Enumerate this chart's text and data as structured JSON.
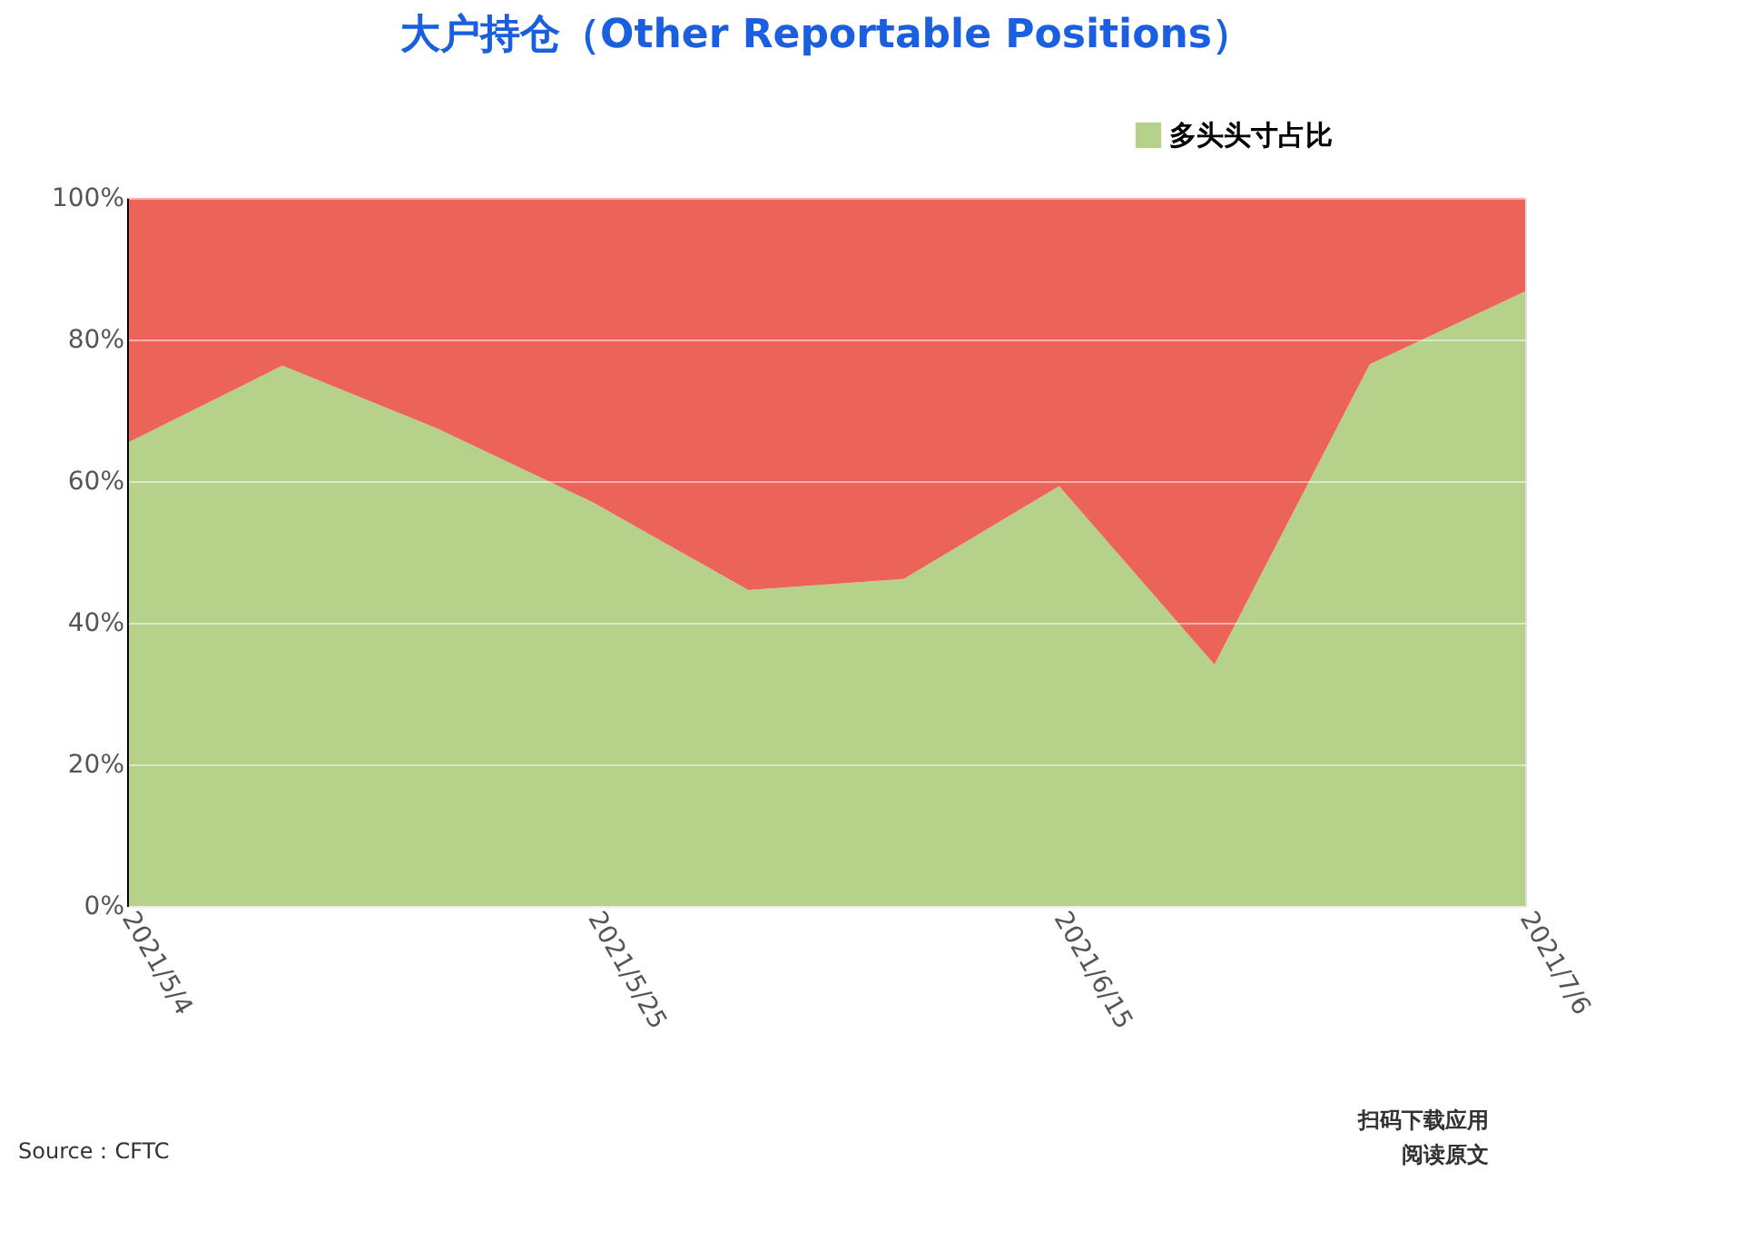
{
  "chart_data": {
    "type": "area",
    "title": "大户持仓（Other Reportable Positions）",
    "x": [
      "2021-05-04",
      "2021-05-11",
      "2021-05-18",
      "2021-05-25",
      "2021-06-01",
      "2021-06-08",
      "2021-06-15",
      "2021-06-22",
      "2021-06-29",
      "2021-07-06"
    ],
    "series": [
      {
        "name": "多头头寸占比",
        "color": "#b5d18a",
        "values": [
          65.4,
          76.3,
          67.4,
          57,
          44.6,
          46.2,
          59.3,
          34.1,
          76.5,
          86.8
        ]
      },
      {
        "color": "#ec6459",
        "values": [
          34.6,
          23.7,
          32.6,
          43,
          55.4,
          53.8,
          40.7,
          65.9,
          23.5,
          13.2
        ]
      }
    ],
    "stacked": true,
    "ylim": [
      0,
      100
    ],
    "yticks": [
      {
        "value": 0,
        "label": "0%"
      },
      {
        "value": 20,
        "label": "20%"
      },
      {
        "value": 40,
        "label": "40%"
      },
      {
        "value": 60,
        "label": "60%"
      },
      {
        "value": 80,
        "label": "80%"
      },
      {
        "value": 100,
        "label": "100%"
      }
    ],
    "xlim": [
      "2021-05-04",
      "2021-07-06"
    ],
    "xticks": [
      {
        "value": "2021-05-04",
        "label": "2021/5/4"
      },
      {
        "value": "2021-05-25",
        "label": "2021/5/25"
      },
      {
        "value": "2021-06-15",
        "label": "2021/6/15"
      },
      {
        "value": "2021-07-06",
        "label": "2021/7/6"
      }
    ],
    "grid": "y",
    "legend": "top right",
    "annotations": [
      "Source：CFTC",
      "扫码下载应用",
      "阅读原文"
    ]
  }
}
